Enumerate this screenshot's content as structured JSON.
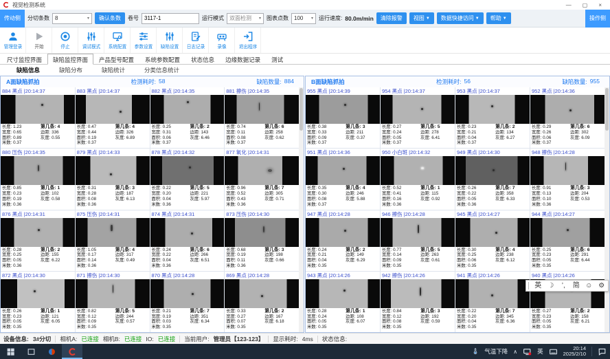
{
  "window": {
    "title": "视觉检测系统"
  },
  "icons": {
    "minimize": "—",
    "maximize": "▢",
    "close": "×",
    "dropdown": "▼",
    "combo_arrow": "▾",
    "chevron_up": "∧"
  },
  "colors": {
    "accent_blue": "#2e90ef",
    "icon_blue": "#1e88e5",
    "header_blue": "#1f7af0",
    "cell_label_blue": "#3a4ecc",
    "connected_green": "#13a10e",
    "taskbar_bg": "#1d2a38"
  },
  "toolbar1": {
    "drive_side": "传动侧",
    "slit_label": "分切条数",
    "slit_value": "8",
    "confirm": "确认条数",
    "roll_label": "卷号",
    "roll_value": "3117-1",
    "mode_label": "运行模式",
    "mode_value": "双面检测",
    "points_label": "图表点数",
    "points_value": "100",
    "speed_label": "运行速度:",
    "speed_value": "80.0m/min",
    "clear_alarm": "清除报警",
    "view": "视图",
    "data_access": "数据快捷访问",
    "help": "帮助",
    "operate_side": "操作侧"
  },
  "toolbar2": {
    "buttons": [
      {
        "label": "管理登录",
        "icon": "user"
      },
      {
        "label": "开始",
        "icon": "play",
        "disabled": true
      },
      {
        "label": "停止",
        "icon": "stop"
      },
      {
        "label": "调试模式",
        "icon": "tune"
      },
      {
        "label": "系统配置",
        "icon": "monitor"
      },
      {
        "label": "参数设置",
        "icon": "sliders-h"
      },
      {
        "label": "缺陷设置",
        "icon": "sliders-v"
      },
      {
        "label": "日志记录",
        "icon": "log"
      },
      {
        "label": "录像",
        "icon": "camera"
      },
      {
        "label": "退出程序",
        "icon": "exit"
      }
    ]
  },
  "tabs": {
    "items": [
      "尺寸监控界面",
      "缺陷监控界面",
      "产品型号配置",
      "系统参数配置",
      "状态信息",
      "边缘数据记录",
      "测试"
    ],
    "active_index": 1
  },
  "subtabs": {
    "items": [
      "缺陷信息",
      "缺陷分布",
      "缺陷统计",
      "分类信息统计"
    ],
    "active_index": 0
  },
  "cell_labels": {
    "len": "长度:",
    "wid": "宽度:",
    "area": "面积:",
    "m": "米数:",
    "strip": "第几条:",
    "margin": "边距:",
    "gray": "灰度:"
  },
  "panels": [
    {
      "title": "A面缺陷抓拍",
      "time_label": "检测耗时:",
      "time_value": "58",
      "count_label": "缺陷数量:",
      "count_value": "884",
      "cells": [
        {
          "id": "884",
          "type": "黑点",
          "time": "20:14:37",
          "len": "1.23",
          "wid": "0.65",
          "area": "0.89",
          "m": "0.37",
          "strip": "4",
          "margin": "336",
          "gray": "0.55",
          "bg": "#b3b3b3",
          "l": 20,
          "r": 15,
          "sx": 55,
          "sy": 30
        },
        {
          "id": "883",
          "type": "黑点",
          "time": "20:14:37",
          "len": "0.47",
          "wid": "0.44",
          "area": "0.19",
          "m": "0.37",
          "strip": "4",
          "margin": "326",
          "gray": "6.89",
          "bg": "#b7b7b7",
          "l": 14,
          "r": 24,
          "sx": 60,
          "sy": 55
        },
        {
          "id": "882",
          "type": "黑点",
          "time": "20:14:35",
          "len": "0.25",
          "wid": "0.31",
          "area": "0.06",
          "m": "0.37",
          "strip": "2",
          "margin": "143",
          "gray": "6.46",
          "bg": "#adadad",
          "l": 18,
          "r": 18,
          "sx": 50,
          "sy": 22
        },
        {
          "id": "881",
          "type": "擦伤",
          "time": "20:14:35",
          "len": "0.74",
          "wid": "0.11",
          "area": "0.08",
          "m": "0.37",
          "strip": "6",
          "margin": "258",
          "gray": "0.62",
          "bg": "#9f9f9f",
          "l": 16,
          "r": 20,
          "sx": 46,
          "sy": 25
        },
        {
          "id": "880",
          "type": "压伤",
          "time": "20:14:35",
          "len": "0.85",
          "wid": "0.23",
          "area": "0.19",
          "m": "0.36",
          "strip": "1",
          "margin": "102",
          "gray": "0.58",
          "bg": "#a9a9a9",
          "l": 18,
          "r": 16,
          "sx": 50,
          "sy": 30
        },
        {
          "id": "879",
          "type": "黑点",
          "time": "20:14:33",
          "len": "0.31",
          "wid": "0.28",
          "area": "0.08",
          "m": "0.36",
          "strip": "3",
          "margin": "187",
          "gray": "6.13",
          "bg": "#bababa",
          "l": 20,
          "r": 18,
          "sx": 47,
          "sy": 60
        },
        {
          "id": "878",
          "type": "黑点",
          "time": "20:14:32",
          "len": "0.22",
          "wid": "0.20",
          "area": "0.04",
          "m": "0.36",
          "strip": "5",
          "margin": "221",
          "gray": "5.97",
          "bg": "#707070",
          "l": 16,
          "r": 14,
          "sx": 52,
          "sy": 35
        },
        {
          "id": "877",
          "type": "氧化",
          "time": "20:14:31",
          "len": "0.96",
          "wid": "0.52",
          "area": "0.43",
          "m": "0.36",
          "strip": "7",
          "margin": "305",
          "gray": "0.71",
          "bg": "#afafaf",
          "l": 18,
          "r": 22,
          "sx": 58,
          "sy": 45
        },
        {
          "id": "876",
          "type": "黑点",
          "time": "20:14:31",
          "len": "0.28",
          "wid": "0.25",
          "area": "0.05",
          "m": "0.36",
          "strip": "2",
          "margin": "155",
          "gray": "6.22",
          "bg": "#b1b1b1",
          "l": 18,
          "r": 16,
          "sx": 50,
          "sy": 40
        },
        {
          "id": "875",
          "type": "压伤",
          "time": "20:14:31",
          "len": "1.05",
          "wid": "0.17",
          "area": "0.14",
          "m": "0.36",
          "strip": "4",
          "margin": "317",
          "gray": "0.49",
          "bg": "#a3a3a3",
          "l": 16,
          "r": 18,
          "sx": 48,
          "sy": 25
        },
        {
          "id": "874",
          "type": "黑点",
          "time": "20:14:31",
          "len": "0.24",
          "wid": "0.22",
          "area": "0.04",
          "m": "0.36",
          "strip": "6",
          "margin": "266",
          "gray": "6.51",
          "bg": "#acacac",
          "l": 20,
          "r": 16,
          "sx": 55,
          "sy": 50
        },
        {
          "id": "873",
          "type": "压伤",
          "time": "20:14:30",
          "len": "0.68",
          "wid": "0.19",
          "area": "0.11",
          "m": "0.36",
          "strip": "3",
          "margin": "198",
          "gray": "0.66",
          "bg": "#8e8e8e",
          "l": 14,
          "r": 18,
          "sx": 52,
          "sy": 30
        },
        {
          "id": "872",
          "type": "黑点",
          "time": "20:14:30",
          "len": "0.26",
          "wid": "0.23",
          "area": "0.05",
          "m": "0.35",
          "strip": "1",
          "margin": "121",
          "gray": "6.05",
          "bg": "#c1c1c1",
          "l": 22,
          "r": 14,
          "sx": 45,
          "sy": 38
        },
        {
          "id": "871",
          "type": "擦伤",
          "time": "20:14:30",
          "len": "0.82",
          "wid": "0.12",
          "area": "0.09",
          "m": "0.35",
          "strip": "5",
          "margin": "244",
          "gray": "0.57",
          "bg": "#b5b5b5",
          "l": 16,
          "r": 20,
          "sx": 50,
          "sy": 20
        },
        {
          "id": "870",
          "type": "黑点",
          "time": "20:14:28",
          "len": "0.21",
          "wid": "0.19",
          "area": "0.03",
          "m": "0.35",
          "strip": "7",
          "margin": "351",
          "gray": "6.34",
          "bg": "#aeaeae",
          "l": 18,
          "r": 18,
          "sx": 56,
          "sy": 48
        },
        {
          "id": "869",
          "type": "黑点",
          "time": "20:14:28",
          "len": "0.33",
          "wid": "0.27",
          "area": "0.07",
          "m": "0.35",
          "strip": "2",
          "margin": "167",
          "gray": "6.18",
          "bg": "#b2b2b2",
          "l": 20,
          "r": 16,
          "sx": 49,
          "sy": 55
        }
      ]
    },
    {
      "title": "B面缺陷抓拍",
      "time_label": "检测耗时:",
      "time_value": "56",
      "count_label": "缺陷数量:",
      "count_value": "955",
      "cells": [
        {
          "id": "955",
          "type": "黑点",
          "time": "20:14:39",
          "len": "0.38",
          "wid": "0.33",
          "area": "0.09",
          "m": "0.37",
          "strip": "3",
          "margin": "211",
          "gray": "0.37",
          "bg": "#9c9c9c",
          "l": 18,
          "r": 16,
          "sx": 52,
          "sy": 30
        },
        {
          "id": "954",
          "type": "黑点",
          "time": "20:14:37",
          "len": "0.27",
          "wid": "0.24",
          "area": "0.05",
          "m": "0.37",
          "strip": "5",
          "margin": "278",
          "gray": "6.41",
          "bg": "#b4b4b4",
          "l": 16,
          "r": 18,
          "sx": 55,
          "sy": 45
        },
        {
          "id": "953",
          "type": "黑点",
          "time": "20:14:37",
          "len": "0.23",
          "wid": "0.21",
          "area": "0.04",
          "m": "0.37",
          "strip": "2",
          "margin": "134",
          "gray": "6.27",
          "bg": "#b8b8b8",
          "l": 18,
          "r": 20,
          "sx": 48,
          "sy": 35
        },
        {
          "id": "952",
          "type": "黑点",
          "time": "20:14:36",
          "len": "0.29",
          "wid": "0.26",
          "area": "0.06",
          "m": "0.37",
          "strip": "6",
          "margin": "302",
          "gray": "6.09",
          "bg": "#adadad",
          "l": 20,
          "r": 14,
          "sx": 53,
          "sy": 50
        },
        {
          "id": "951",
          "type": "黑点",
          "time": "20:14:36",
          "len": "0.35",
          "wid": "0.30",
          "area": "0.08",
          "m": "0.37",
          "strip": "4",
          "margin": "246",
          "gray": "5.88",
          "bg": "#a6a6a6",
          "l": 16,
          "r": 18,
          "sx": 50,
          "sy": 40
        },
        {
          "id": "950",
          "type": "小白斑",
          "time": "20:14:32",
          "len": "0.52",
          "wid": "0.41",
          "area": "0.16",
          "m": "0.36",
          "strip": "1",
          "margin": "115",
          "gray": "0.92",
          "bg": "#b1b1b1",
          "l": 18,
          "r": 16,
          "sx": 55,
          "sy": 38
        },
        {
          "id": "949",
          "type": "黑点",
          "time": "20:14:30",
          "len": "0.26",
          "wid": "0.22",
          "area": "0.05",
          "m": "0.36",
          "strip": "7",
          "margin": "358",
          "gray": "6.33",
          "bg": "#606060",
          "l": 14,
          "r": 16,
          "sx": 50,
          "sy": 45
        },
        {
          "id": "948",
          "type": "擦伤",
          "time": "20:14:28",
          "len": "0.91",
          "wid": "0.13",
          "area": "0.10",
          "m": "0.36",
          "strip": "3",
          "margin": "204",
          "gray": "0.53",
          "bg": "#b6b6b6",
          "l": 18,
          "r": 22,
          "sx": 47,
          "sy": 22
        },
        {
          "id": "947",
          "type": "黑点",
          "time": "20:14:28",
          "len": "0.24",
          "wid": "0.21",
          "area": "0.04",
          "m": "0.35",
          "strip": "2",
          "margin": "149",
          "gray": "6.29",
          "bg": "#aaaaaa",
          "l": 18,
          "r": 16,
          "sx": 52,
          "sy": 42
        },
        {
          "id": "946",
          "type": "擦伤",
          "time": "20:14:28",
          "len": "0.77",
          "wid": "0.14",
          "area": "0.09",
          "m": "0.35",
          "strip": "5",
          "margin": "263",
          "gray": "0.61",
          "bg": "#b3b3b3",
          "l": 16,
          "r": 18,
          "sx": 50,
          "sy": 25
        },
        {
          "id": "945",
          "type": "黑点",
          "time": "20:14:27",
          "len": "0.30",
          "wid": "0.25",
          "area": "0.06",
          "m": "0.35",
          "strip": "4",
          "margin": "238",
          "gray": "6.12",
          "bg": "#aeaeae",
          "l": 20,
          "r": 16,
          "sx": 54,
          "sy": 48
        },
        {
          "id": "944",
          "type": "黑点",
          "time": "20:14:27",
          "len": "0.25",
          "wid": "0.23",
          "area": "0.05",
          "m": "0.35",
          "strip": "6",
          "margin": "291",
          "gray": "6.44",
          "bg": "#a0a0a0",
          "l": 16,
          "r": 20,
          "sx": 49,
          "sy": 40
        },
        {
          "id": "943",
          "type": "黑点",
          "time": "20:14:26",
          "len": "0.28",
          "wid": "0.24",
          "area": "0.05",
          "m": "0.35",
          "strip": "1",
          "margin": "108",
          "gray": "6.07",
          "bg": "#b7b7b7",
          "l": 18,
          "r": 16,
          "sx": 51,
          "sy": 36
        },
        {
          "id": "942",
          "type": "擦伤",
          "time": "20:14:26",
          "len": "0.84",
          "wid": "0.12",
          "area": "0.08",
          "m": "0.35",
          "strip": "3",
          "margin": "192",
          "gray": "0.59",
          "bg": "#bbbbbb",
          "l": 14,
          "r": 18,
          "sx": 53,
          "sy": 28
        },
        {
          "id": "941",
          "type": "黑点",
          "time": "20:14:26",
          "len": "0.22",
          "wid": "0.20",
          "area": "0.04",
          "m": "0.35",
          "strip": "7",
          "margin": "345",
          "gray": "6.36",
          "bg": "#b1b1b1",
          "l": 18,
          "r": 16,
          "sx": 48,
          "sy": 52
        },
        {
          "id": "940",
          "type": "黑点",
          "time": "20:14:26",
          "len": "0.27",
          "wid": "0.23",
          "area": "0.05",
          "m": "0.35",
          "strip": "2",
          "margin": "158",
          "gray": "6.21",
          "bg": "#b5b5b5",
          "l": 20,
          "r": 18,
          "sx": 55,
          "sy": 33
        }
      ]
    }
  ],
  "statusbar": {
    "device_label": "设备信息:",
    "device_value": "3#分切",
    "camA_label": "相机A:",
    "camB_label": "相机B:",
    "io_label": "IO:",
    "connected": "已连接",
    "user_label": "当前用户:",
    "user_value": "管理员【123-123】",
    "display_label": "显示耗时:",
    "display_value": "4ms",
    "status_label": "状态信息:"
  },
  "taskbar": {
    "weather": "气温下降",
    "lang": "英",
    "time": "20:14",
    "date": "2025/2/10"
  },
  "ime_bar": {
    "items": [
      "英",
      "☽",
      "’,",
      "简",
      "☺",
      "⚙"
    ]
  }
}
